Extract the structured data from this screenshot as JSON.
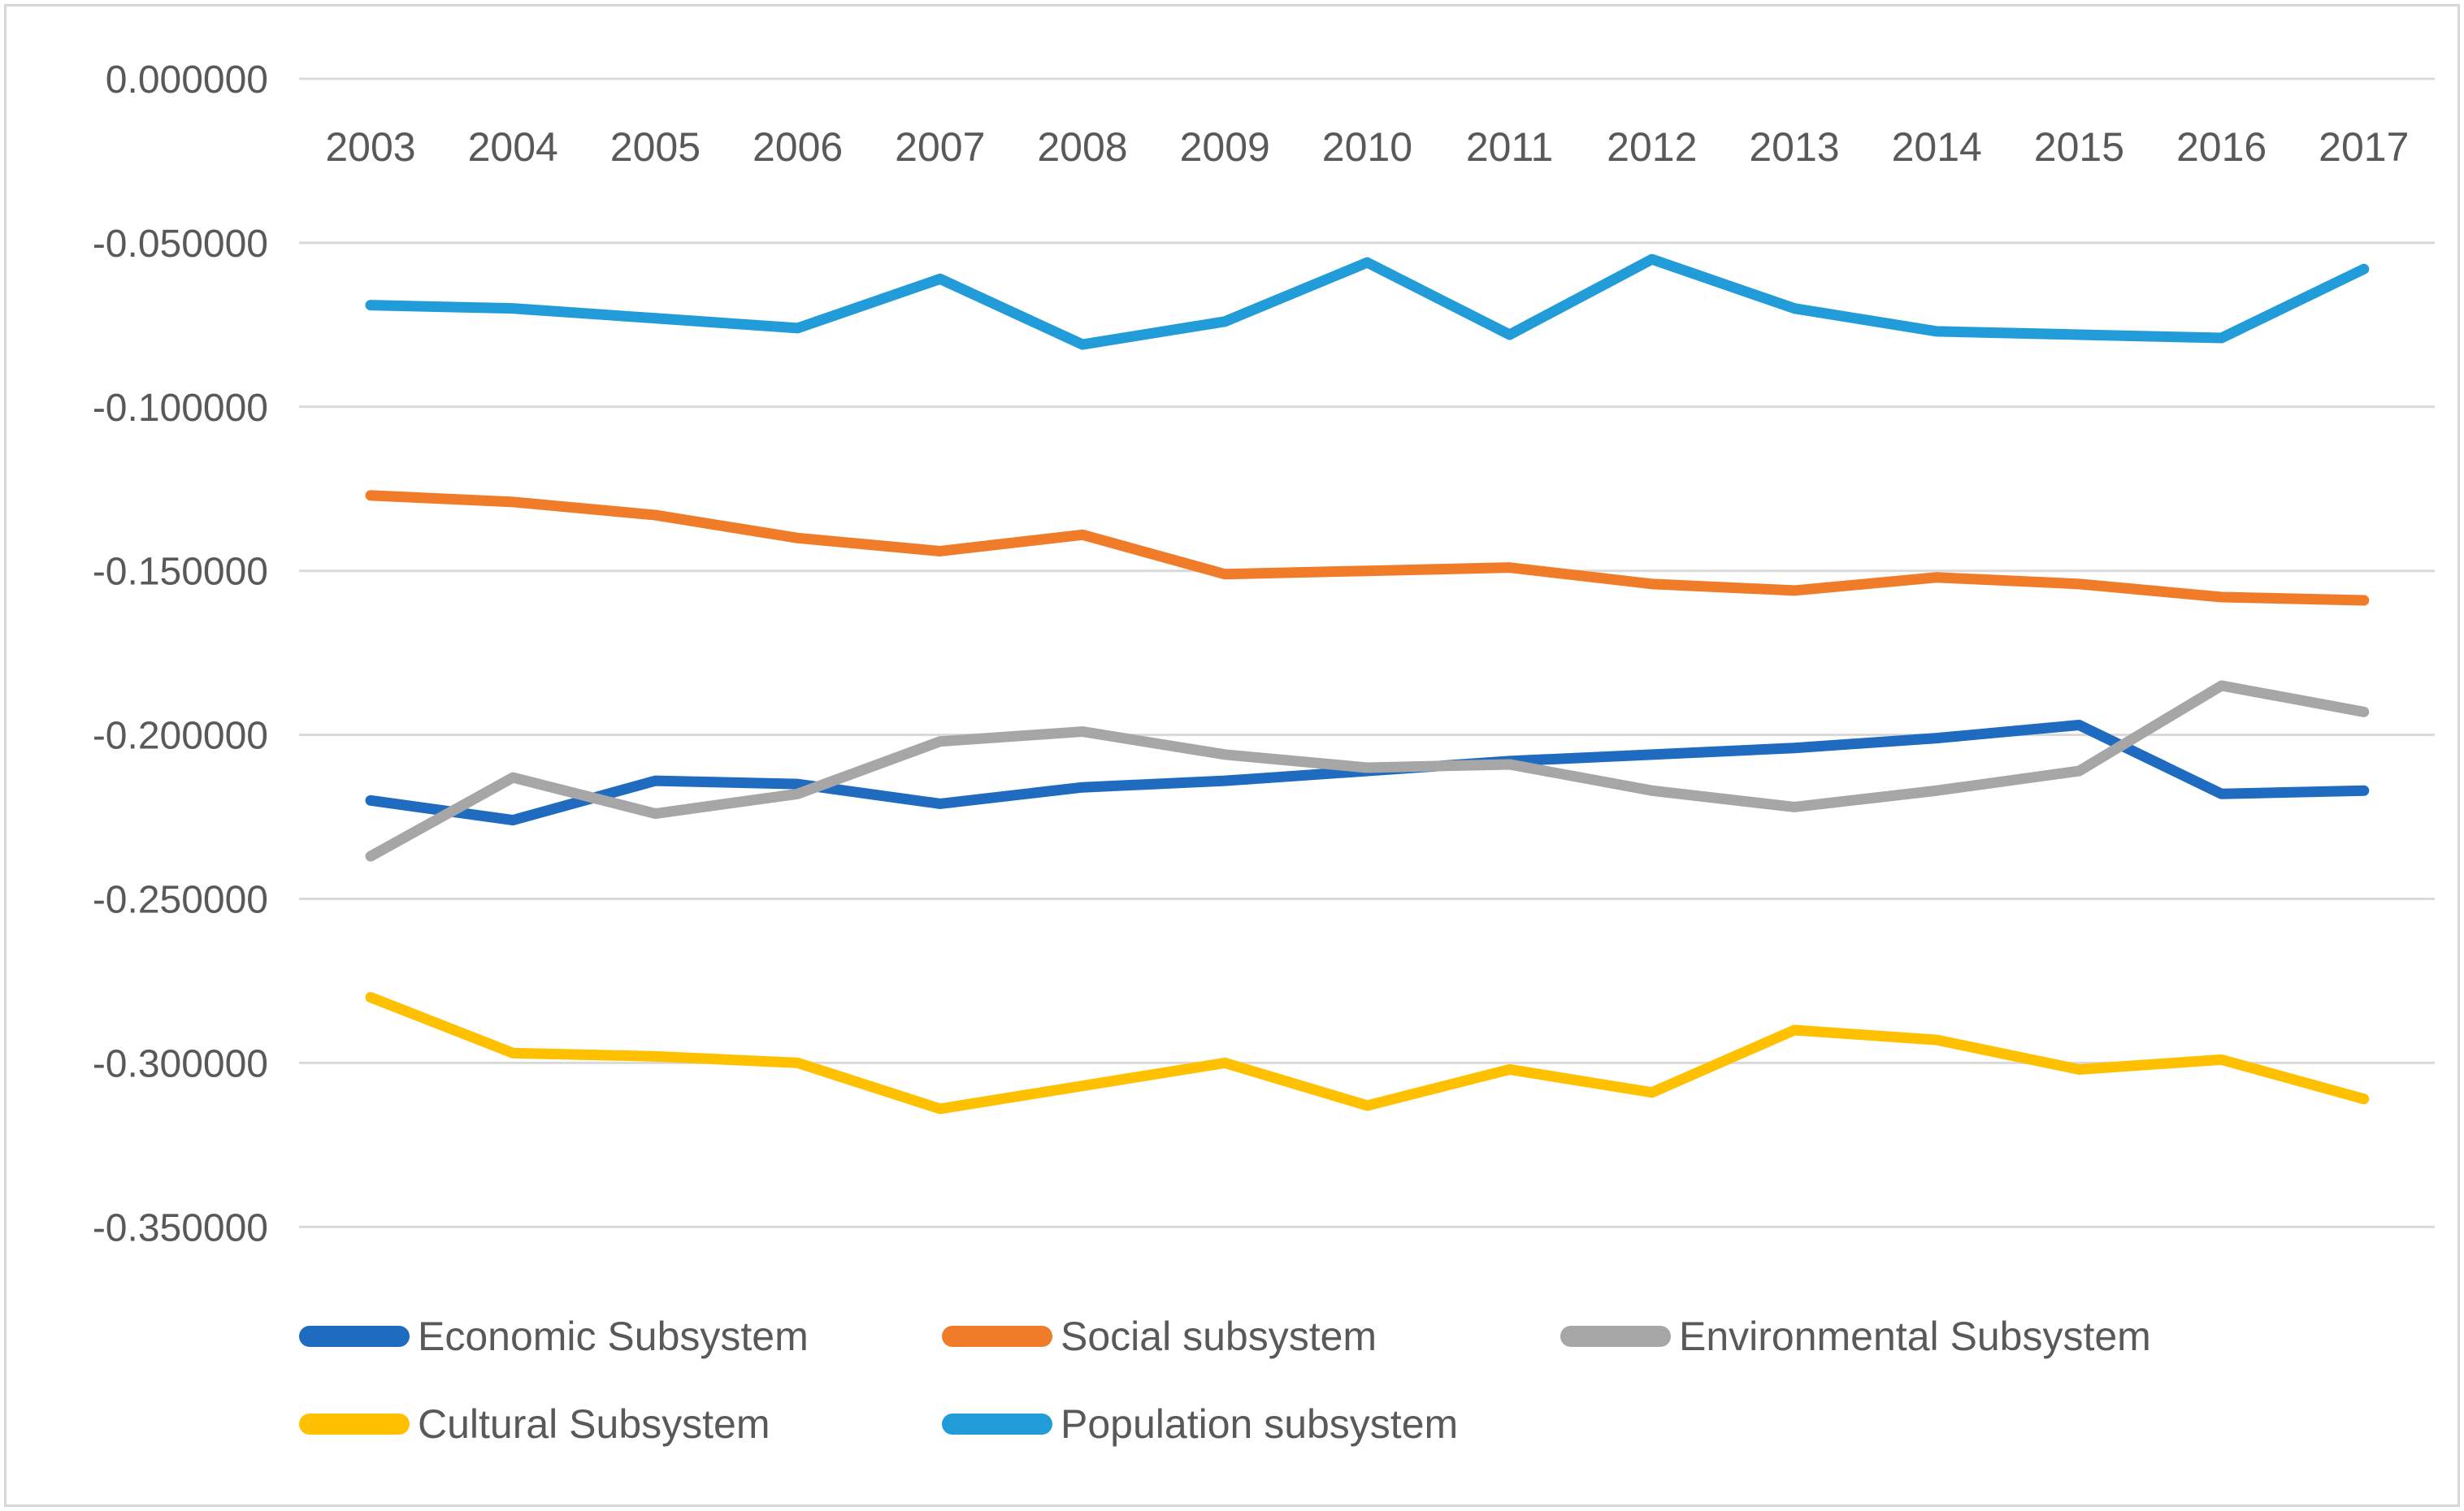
{
  "chart_data": {
    "type": "line",
    "title": "",
    "xlabel": "",
    "ylabel": "",
    "categories": [
      "2003",
      "2004",
      "2005",
      "2006",
      "2007",
      "2008",
      "2009",
      "2010",
      "2011",
      "2012",
      "2013",
      "2014",
      "2015",
      "2016",
      "2017"
    ],
    "y_tick_labels": [
      "0.000000",
      "-0.050000",
      "-0.100000",
      "-0.150000",
      "-0.200000",
      "-0.250000",
      "-0.300000",
      "-0.350000"
    ],
    "ylim": [
      -0.35,
      0
    ],
    "grid": true,
    "legend_position": "bottom",
    "colors": {
      "gridline": "#d9d9d9",
      "tick_text": "#595959",
      "frame_border": "#d6d6d6"
    },
    "series": [
      {
        "name": "Economic Subsystem",
        "color": "#1f6bbf",
        "values": [
          -0.22,
          -0.226,
          -0.214,
          -0.215,
          -0.221,
          -0.216,
          -0.214,
          -0.211,
          -0.208,
          -0.206,
          -0.204,
          -0.201,
          -0.197,
          -0.218,
          -0.217
        ]
      },
      {
        "name": "Social subsystem",
        "color": "#f07b28",
        "values": [
          -0.127,
          -0.129,
          -0.133,
          -0.14,
          -0.144,
          -0.139,
          -0.151,
          -0.15,
          -0.149,
          -0.154,
          -0.156,
          -0.152,
          -0.154,
          -0.158,
          -0.159
        ]
      },
      {
        "name": "Environmental Subsystem",
        "color": "#a6a6a6",
        "values": [
          -0.237,
          -0.213,
          -0.224,
          -0.218,
          -0.202,
          -0.199,
          -0.206,
          -0.21,
          -0.209,
          -0.217,
          -0.222,
          -0.217,
          -0.211,
          -0.185,
          -0.193
        ]
      },
      {
        "name": "Cultural Subsystem",
        "color": "#ffc000",
        "values": [
          -0.28,
          -0.297,
          -0.298,
          -0.3,
          -0.314,
          -0.307,
          -0.3,
          -0.313,
          -0.302,
          -0.309,
          -0.29,
          -0.293,
          -0.302,
          -0.299,
          -0.311
        ]
      },
      {
        "name": "Population subsystem",
        "color": "#219cd8",
        "values": [
          -0.069,
          -0.07,
          -0.073,
          -0.076,
          -0.061,
          -0.081,
          -0.074,
          -0.056,
          -0.078,
          -0.055,
          -0.07,
          -0.077,
          -0.078,
          -0.079,
          -0.058
        ]
      }
    ]
  }
}
